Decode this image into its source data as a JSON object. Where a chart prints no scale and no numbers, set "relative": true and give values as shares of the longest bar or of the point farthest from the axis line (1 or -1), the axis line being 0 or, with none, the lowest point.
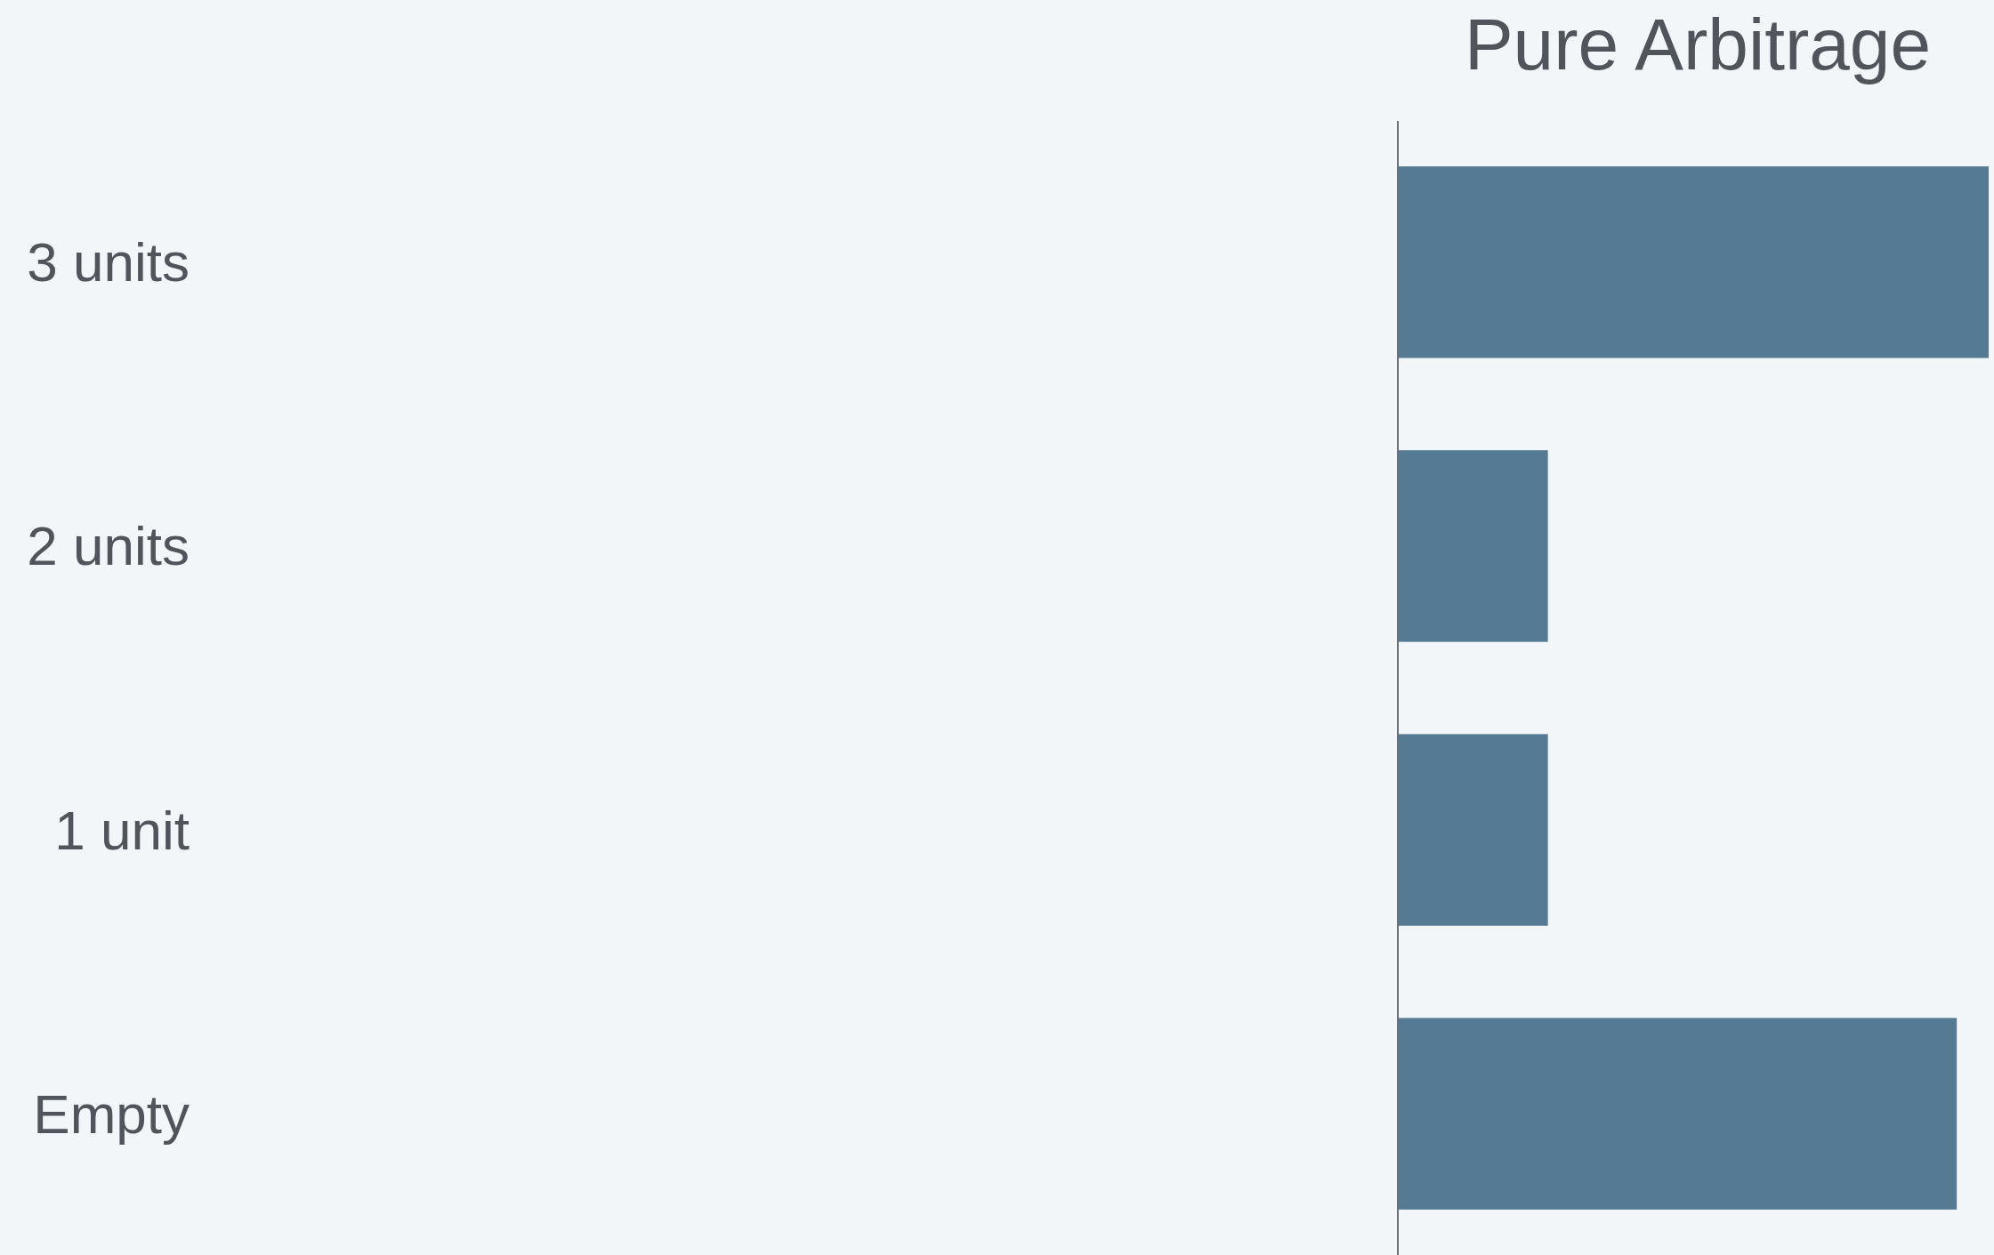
{
  "chart_data": {
    "type": "bar",
    "title": "Pure Arbitrage",
    "orientation": "horizontal",
    "relative": true,
    "categories": [
      "3 units",
      "2 units",
      "1 unit",
      "Empty"
    ],
    "values": [
      1,
      0.254,
      0.254,
      0.946
    ],
    "color": "#557a94"
  }
}
